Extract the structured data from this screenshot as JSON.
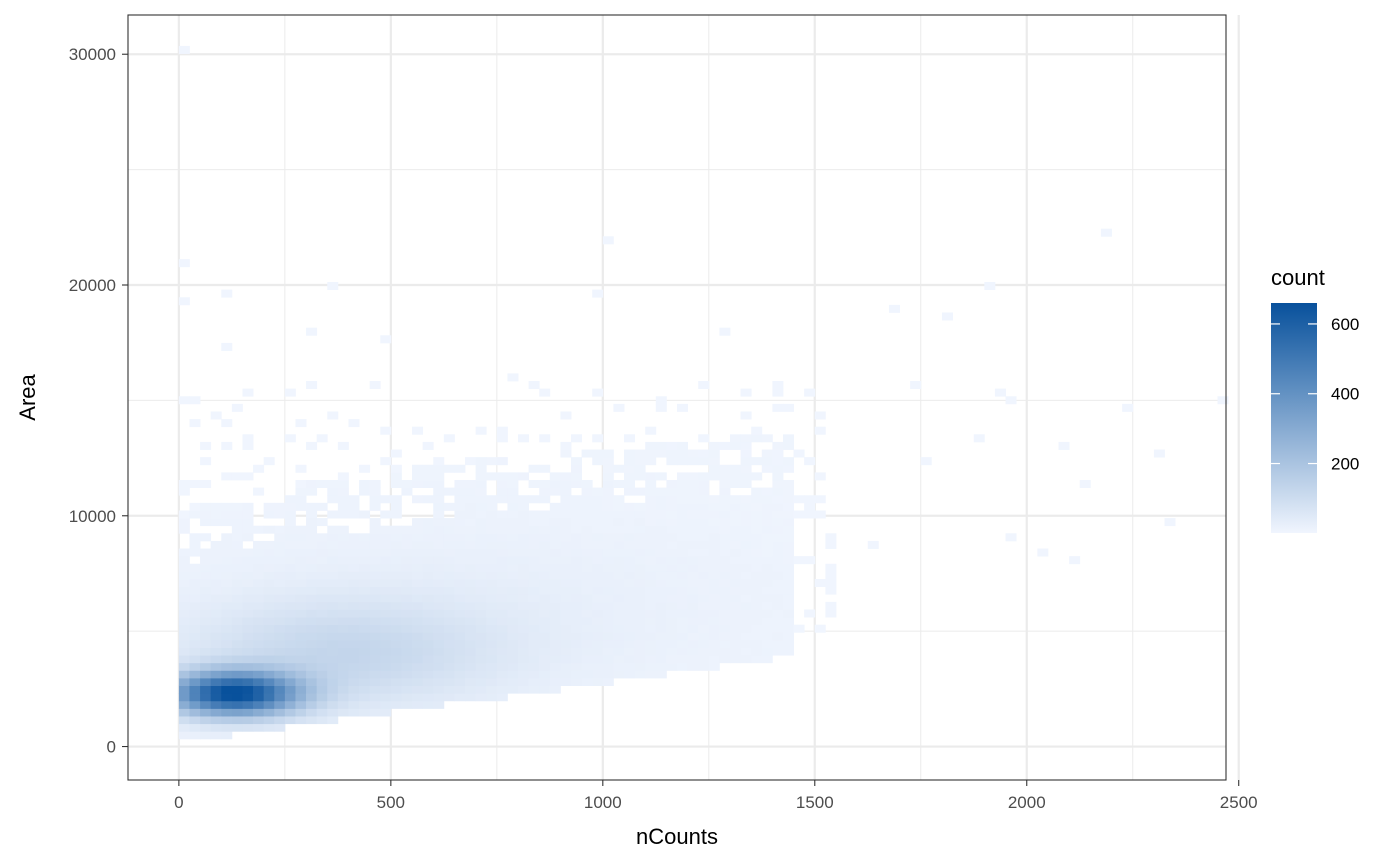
{
  "chart_data": {
    "type": "heatmap",
    "subtype": "2d-bin-count",
    "title": "",
    "xlabel": "nCounts",
    "ylabel": "Area",
    "xlim": [
      -120,
      2470
    ],
    "ylim": [
      -1450,
      31700
    ],
    "x_ticks": [
      0,
      500,
      1000,
      1500,
      2000,
      2500
    ],
    "y_ticks": [
      0,
      10000,
      20000,
      30000
    ],
    "x_bin_width": 25,
    "y_bin_height": 330,
    "grid": true,
    "theme": "bw",
    "legend": {
      "title": "count",
      "position": "right",
      "ticks": [
        200,
        400,
        600
      ],
      "range": [
        1,
        660
      ],
      "low_color": "#f0f5fe",
      "high_color": "#08519c"
    },
    "density_model": {
      "core_peak_count": 640,
      "core_center": [
        130,
        2300
      ],
      "sparse_outliers": [
        [
          5,
          30100
        ],
        [
          5,
          21100
        ],
        [
          5,
          19300
        ],
        [
          100,
          17200
        ],
        [
          110,
          19600
        ],
        [
          1000,
          22000
        ],
        [
          975,
          19600
        ],
        [
          490,
          17700
        ],
        [
          305,
          18100
        ],
        [
          1275,
          18100
        ],
        [
          1680,
          18900
        ],
        [
          1815,
          18700
        ],
        [
          1910,
          19900
        ],
        [
          2195,
          22300
        ],
        [
          2245,
          14800
        ],
        [
          2465,
          15100
        ],
        [
          2100,
          8000
        ],
        [
          2310,
          12700
        ],
        [
          2345,
          9600
        ],
        [
          2095,
          13100
        ],
        [
          1950,
          9000
        ],
        [
          2030,
          8300
        ],
        [
          1930,
          15200
        ],
        [
          1755,
          12400
        ],
        [
          1635,
          8600
        ],
        [
          1725,
          15800
        ],
        [
          370,
          20000
        ],
        [
          1955,
          14900
        ],
        [
          1895,
          13300
        ],
        [
          2140,
          11300
        ]
      ]
    }
  }
}
